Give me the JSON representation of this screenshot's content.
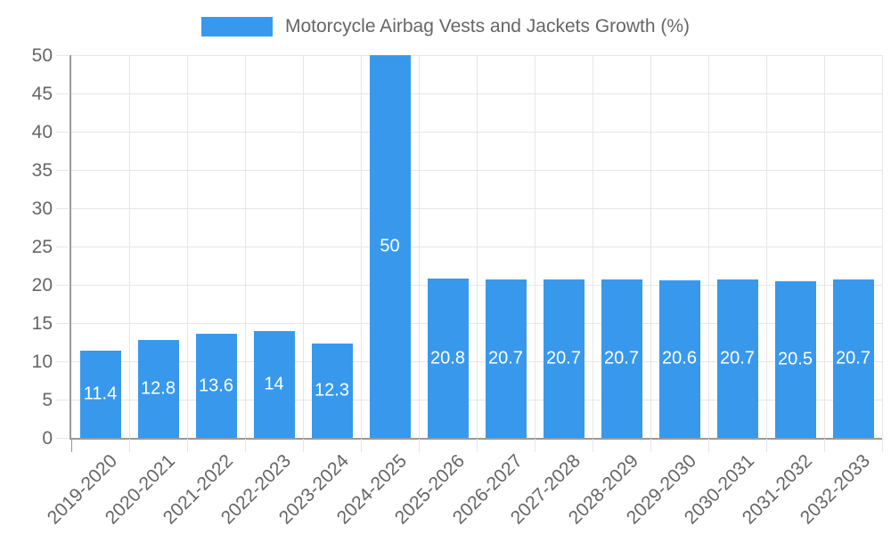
{
  "chart_data": {
    "type": "bar",
    "title": "Motorcycle Airbag Vests and Jackets Growth (%)",
    "legend": {
      "position": "top",
      "label": "Motorcycle Airbag Vests and Jackets Growth (%)"
    },
    "categories": [
      "2019-2020",
      "2020-2021",
      "2021-2022",
      "2022-2023",
      "2023-2024",
      "2024-2025",
      "2025-2026",
      "2026-2027",
      "2027-2028",
      "2028-2029",
      "2029-2030",
      "2030-2031",
      "2031-2032",
      "2032-2033"
    ],
    "values": [
      11.4,
      12.8,
      13.6,
      14,
      12.3,
      50,
      20.8,
      20.7,
      20.7,
      20.7,
      20.6,
      20.7,
      20.5,
      20.7
    ],
    "value_labels": [
      "11.4",
      "12.8",
      "13.6",
      "14",
      "12.3",
      "50",
      "20.8",
      "20.7",
      "20.7",
      "20.7",
      "20.6",
      "20.7",
      "20.5",
      "20.7"
    ],
    "xlabel": "",
    "ylabel": "",
    "ylim": [
      0,
      50
    ],
    "ytick_step": 5,
    "yticks": [
      "0",
      "5",
      "10",
      "15",
      "20",
      "25",
      "30",
      "35",
      "40",
      "45",
      "50"
    ],
    "grid": true,
    "colors": {
      "bar": "#3899ec",
      "grid": "#e6e6e6",
      "axis": "#999999",
      "tick_text": "#666666",
      "value_label": "#ffffff",
      "background": "#ffffff"
    }
  }
}
